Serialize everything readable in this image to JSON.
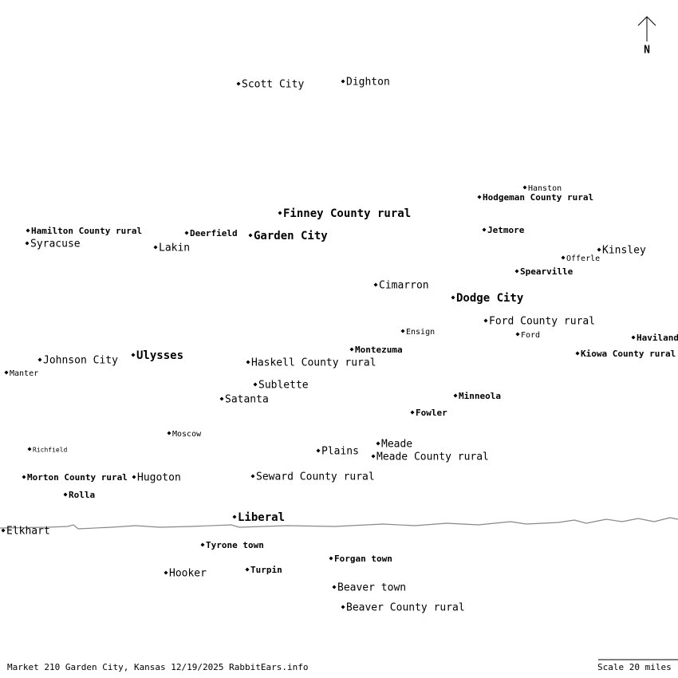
{
  "north": "N",
  "places": [
    {
      "label": "Scott City"
    },
    {
      "label": "Dighton"
    },
    {
      "label": "Hanston"
    },
    {
      "label": "Hodgeman County rural"
    },
    {
      "label": "Finney County rural"
    },
    {
      "label": "Hamilton County rural"
    },
    {
      "label": "Deerfield"
    },
    {
      "label": "Garden City"
    },
    {
      "label": "Jetmore"
    },
    {
      "label": "Syracuse"
    },
    {
      "label": "Lakin"
    },
    {
      "label": "Kinsley"
    },
    {
      "label": "Offerle"
    },
    {
      "label": "Spearville"
    },
    {
      "label": "Cimarron"
    },
    {
      "label": "Dodge City"
    },
    {
      "label": "Ford County rural"
    },
    {
      "label": "Ensign"
    },
    {
      "label": "Ford"
    },
    {
      "label": "Haviland"
    },
    {
      "label": "Montezuma"
    },
    {
      "label": "Kiowa County rural"
    },
    {
      "label": "Ulysses"
    },
    {
      "label": "Johnson City"
    },
    {
      "label": "Haskell County rural"
    },
    {
      "label": "Manter"
    },
    {
      "label": "Sublette"
    },
    {
      "label": "Minneola"
    },
    {
      "label": "Satanta"
    },
    {
      "label": "Fowler"
    },
    {
      "label": "Moscow"
    },
    {
      "label": "Meade"
    },
    {
      "label": "Richfield"
    },
    {
      "label": "Plains"
    },
    {
      "label": "Meade County rural"
    },
    {
      "label": "Morton County rural"
    },
    {
      "label": "Hugoton"
    },
    {
      "label": "Seward County rural"
    },
    {
      "label": "Rolla"
    },
    {
      "label": "Liberal"
    },
    {
      "label": "Elkhart"
    },
    {
      "label": "Tyrone town"
    },
    {
      "label": "Forgan town"
    },
    {
      "label": "Hooker"
    },
    {
      "label": "Turpin"
    },
    {
      "label": "Beaver town"
    },
    {
      "label": "Beaver County rural"
    }
  ],
  "footer": {
    "credit": "Market 210 Garden City, Kansas 12/19/2025 RabbitEars.info",
    "scale": "Scale 20 miles"
  }
}
